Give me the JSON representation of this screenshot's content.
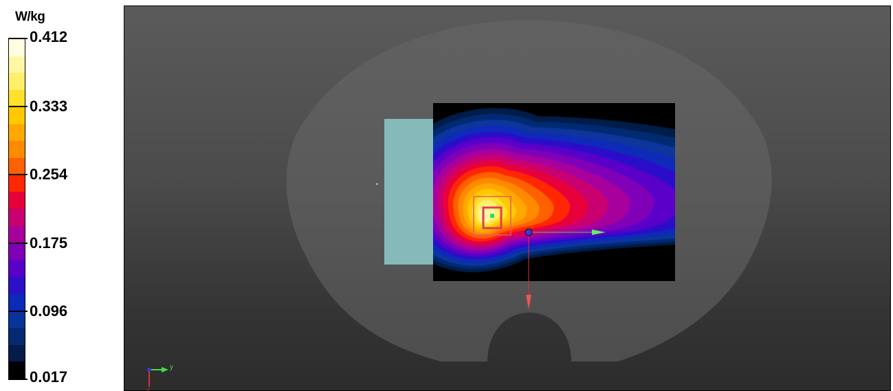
{
  "chart_data": {
    "type": "heatmap",
    "title": "",
    "colorbar": {
      "unit": "W/kg",
      "tick_labels": [
        "0.412",
        "0.333",
        "0.254",
        "0.175",
        "0.096",
        "0.017"
      ],
      "tick_values": [
        0.412,
        0.333,
        0.254,
        0.175,
        0.096,
        0.017
      ],
      "range": [
        0.017,
        0.412
      ],
      "colors_top_to_bottom": [
        "#fffde0",
        "#fff7a6",
        "#ffef6a",
        "#ffe02a",
        "#ffc800",
        "#ffa800",
        "#ff8a00",
        "#ff6000",
        "#ff2800",
        "#e8003a",
        "#c80070",
        "#a8009c",
        "#8000b8",
        "#5a00c8",
        "#2c10c8",
        "#0a2ab8",
        "#08349c",
        "#062a72",
        "#041c4a",
        "#000000"
      ]
    },
    "peak_location": "scan area center-left",
    "coordinate_axes": {
      "horizontal": "y",
      "vertical": "x"
    }
  },
  "colors": {
    "background_top": "#5b5b5b",
    "background_bottom": "#2c2c2c",
    "phantom": "#676767",
    "device": "#86b9b9",
    "scan_background": "#000000",
    "axis_y": "#44dd44",
    "axis_x": "#dd3333"
  }
}
